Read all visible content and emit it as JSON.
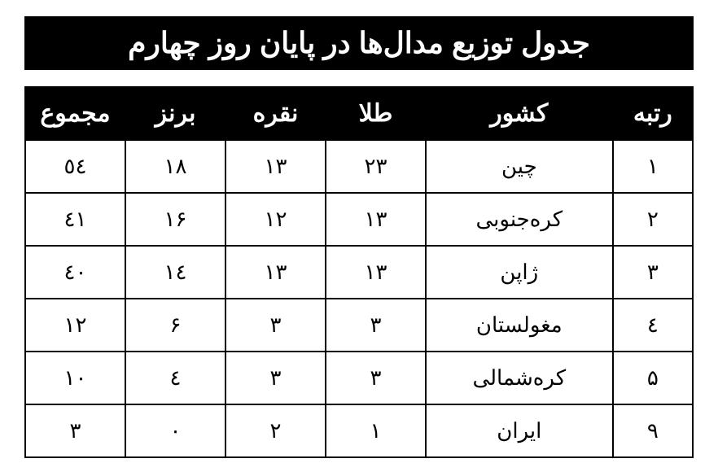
{
  "title": "جدول توزیع مدال‌ها در پایان روز چهارم",
  "table": {
    "type": "table",
    "background_color": "#ffffff",
    "header_bg": "#000000",
    "header_fg": "#ffffff",
    "border_color": "#000000",
    "title_fontsize": 36,
    "header_fontsize": 30,
    "cell_fontsize": 26,
    "columns": [
      {
        "key": "rank",
        "label": "رتبه",
        "width_pct": 12
      },
      {
        "key": "country",
        "label": "کشور",
        "width_pct": 28
      },
      {
        "key": "gold",
        "label": "طلا",
        "width_pct": 15
      },
      {
        "key": "silver",
        "label": "نقره",
        "width_pct": 15
      },
      {
        "key": "bronze",
        "label": "برنز",
        "width_pct": 15
      },
      {
        "key": "total",
        "label": "مجموع",
        "width_pct": 15
      }
    ],
    "rows": [
      {
        "rank": "۱",
        "country": "چین",
        "gold": "۲۳",
        "silver": "۱۳",
        "bronze": "۱۸",
        "total": "٥٤"
      },
      {
        "rank": "۲",
        "country": "کره‌جنوبی",
        "gold": "۱۳",
        "silver": "۱۲",
        "bronze": "۱۶",
        "total": "٤١"
      },
      {
        "rank": "۳",
        "country": "ژاپن",
        "gold": "۱۳",
        "silver": "۱۳",
        "bronze": "١٤",
        "total": "٤٠"
      },
      {
        "rank": "٤",
        "country": "مغولستان",
        "gold": "۳",
        "silver": "۳",
        "bronze": "۶",
        "total": "۱۲"
      },
      {
        "rank": "۵",
        "country": "کره‌شمالی",
        "gold": "۳",
        "silver": "۳",
        "bronze": "٤",
        "total": "۱۰"
      },
      {
        "rank": "۹",
        "country": "ایران",
        "gold": "۱",
        "silver": "۲",
        "bronze": "۰",
        "total": "۳"
      }
    ]
  }
}
